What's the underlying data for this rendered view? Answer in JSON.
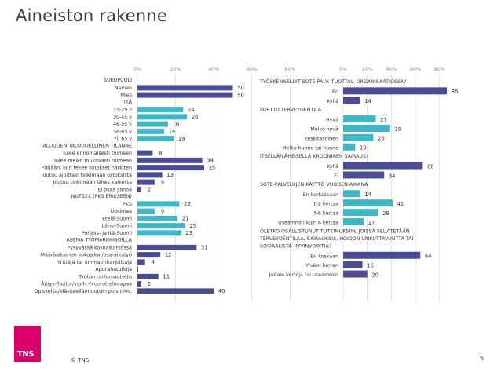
{
  "page": {
    "title": "Aineiston rakenne",
    "copyright": "© TNS",
    "page_number": "5",
    "logo_text": "TNS"
  },
  "colors": {
    "dark_bar": "#4a4d93",
    "light_bar": "#41b6c4",
    "logo": "#d9006c",
    "grid": "#d0d0d0"
  },
  "chart_data": [
    {
      "type": "bar",
      "orientation": "horizontal",
      "xlim": [
        0,
        80
      ],
      "xticks": [
        "0%",
        "20%",
        "40%",
        "60%",
        "80%"
      ],
      "rows": [
        {
          "label": "SUKUPUOLI",
          "header": true
        },
        {
          "label": "Nainen",
          "value": 50,
          "series": "dark"
        },
        {
          "label": "Mies",
          "value": 50,
          "series": "dark"
        },
        {
          "label": "IKÄ",
          "header": true
        },
        {
          "label": "15-29 v",
          "value": 24,
          "series": "light"
        },
        {
          "label": "30-45 v",
          "value": 26,
          "series": "light"
        },
        {
          "label": "46-55 v",
          "value": 16,
          "series": "light"
        },
        {
          "label": "56-65 v",
          "value": 14,
          "series": "light"
        },
        {
          "label": "Yli 65 v",
          "value": 19,
          "series": "light"
        },
        {
          "label": "TALOUDEN TALOUDELLINEN TILANNE",
          "header": true
        },
        {
          "label": "Tulee erinomaisesti toimeen",
          "value": 8,
          "series": "dark"
        },
        {
          "label": "Tulee melko mukavasti toimeen",
          "value": 34,
          "series": "dark"
        },
        {
          "label": "Pärjään, kun tekee ostokset harkiten",
          "value": 35,
          "series": "dark"
        },
        {
          "label": "Joutuu ajoittain tinkimään ostoksista",
          "value": 13,
          "series": "dark"
        },
        {
          "label": "Joutuu tinkimään lähes kaikesta",
          "value": 9,
          "series": "dark"
        },
        {
          "label": "Ei osaa sanoa",
          "value": 2,
          "series": "dark"
        },
        {
          "label": "NUTS2X (PKS ERIKSEEN)",
          "header": true
        },
        {
          "label": "PKS",
          "value": 22,
          "series": "light"
        },
        {
          "label": "Uusimaa",
          "value": 9,
          "series": "light"
        },
        {
          "label": "Etelä-Suomi",
          "value": 21,
          "series": "light"
        },
        {
          "label": "Länsi-Suomi",
          "value": 25,
          "series": "light"
        },
        {
          "label": "Pohjois- ja Itä-Suomi",
          "value": 23,
          "series": "light"
        },
        {
          "label": "ASEMA TYÖMARKKINOILLA",
          "header": true
        },
        {
          "label": "Pysyvässä kokoaikatyössä",
          "value": 31,
          "series": "dark"
        },
        {
          "label": "Määräaikainen kokoaika-/osa-aikatyö",
          "value": 12,
          "series": "dark"
        },
        {
          "label": "Yrittäjä tai ammatinharjoittaja",
          "value": 4,
          "series": "dark"
        },
        {
          "label": "Apurahatutkija",
          "value": 0,
          "series": "dark",
          "no_label": true
        },
        {
          "label": "Työtön tai lomautettu",
          "value": 11,
          "series": "dark"
        },
        {
          "label": "Äitiys-/hoito-/vanh.-/vuorotteluvapaa",
          "value": 2,
          "series": "dark"
        },
        {
          "label": "Opiskelija/eläkkeellä/muutoin pois työv.",
          "value": 40,
          "series": "dark"
        }
      ]
    },
    {
      "type": "bar",
      "orientation": "horizontal",
      "xlim": [
        0,
        80
      ],
      "xticks": [
        "0%",
        "20%",
        "40%",
        "60%",
        "80%"
      ],
      "rows": [
        {
          "label": "TYÖSKENNELLYT SOTE-PALV. TUOTTAV. ORGANISAATIOSSA?",
          "header": true
        },
        {
          "label": "En",
          "value": 86,
          "series": "dark"
        },
        {
          "label": "Kyllä",
          "value": 14,
          "series": "dark"
        },
        {
          "label": "KOETTU TERVEYDENTILA",
          "header": true
        },
        {
          "label": "Hyvä",
          "value": 27,
          "series": "light"
        },
        {
          "label": "Melko hyvä",
          "value": 39,
          "series": "light"
        },
        {
          "label": "Keskitasoinen",
          "value": 25,
          "series": "light"
        },
        {
          "label": "Melko huono tai huono",
          "value": 10,
          "series": "light"
        },
        {
          "label": "ITSELLÄ/LÄHEISELLÄ KROONINEN SAIRAUS?",
          "header": true
        },
        {
          "label": "Kyllä",
          "value": 66,
          "series": "dark"
        },
        {
          "label": "Ei",
          "value": 34,
          "series": "dark"
        },
        {
          "label": "SOTE-PALVELUJEN KÄYTTÖ VUODEN AIKANA",
          "header": true
        },
        {
          "label": "En kertaakaan",
          "value": 14,
          "series": "light"
        },
        {
          "label": "1-2 kertaa",
          "value": 41,
          "series": "light"
        },
        {
          "label": "3-6 kertaa",
          "value": 29,
          "series": "light"
        },
        {
          "label": "Useammin kuin 6 kertaa",
          "value": 17,
          "series": "light"
        },
        {
          "label": "OLETKO OSALLISTUNUT TUTKIMUKSIIN, JOISSA SELVITETÄÄN TERVEYDENTILAA, SAIRAUKSIA, HOIDON VAIKUTTAVUUTTA TAI SOSIAALISTA HYVINVOINTIA?",
          "header": true,
          "lines": [
            "OLETKO OSALLISTUNUT TUTKIMUKSIIN, JOISSA SELVITETÄÄN",
            "TERVEYDENTILAA, SAIRAUKSIA, HOIDON VAIKUTTAVUUTTA TAI",
            "SOSIAALISTA HYVINVOINTIA?"
          ]
        },
        {
          "label": "En koskaan",
          "value": 64,
          "series": "dark"
        },
        {
          "label": "Yhden kerran",
          "value": 16,
          "series": "dark"
        },
        {
          "label": "Joitain kertoja tai useammin",
          "value": 20,
          "series": "dark"
        }
      ]
    }
  ]
}
